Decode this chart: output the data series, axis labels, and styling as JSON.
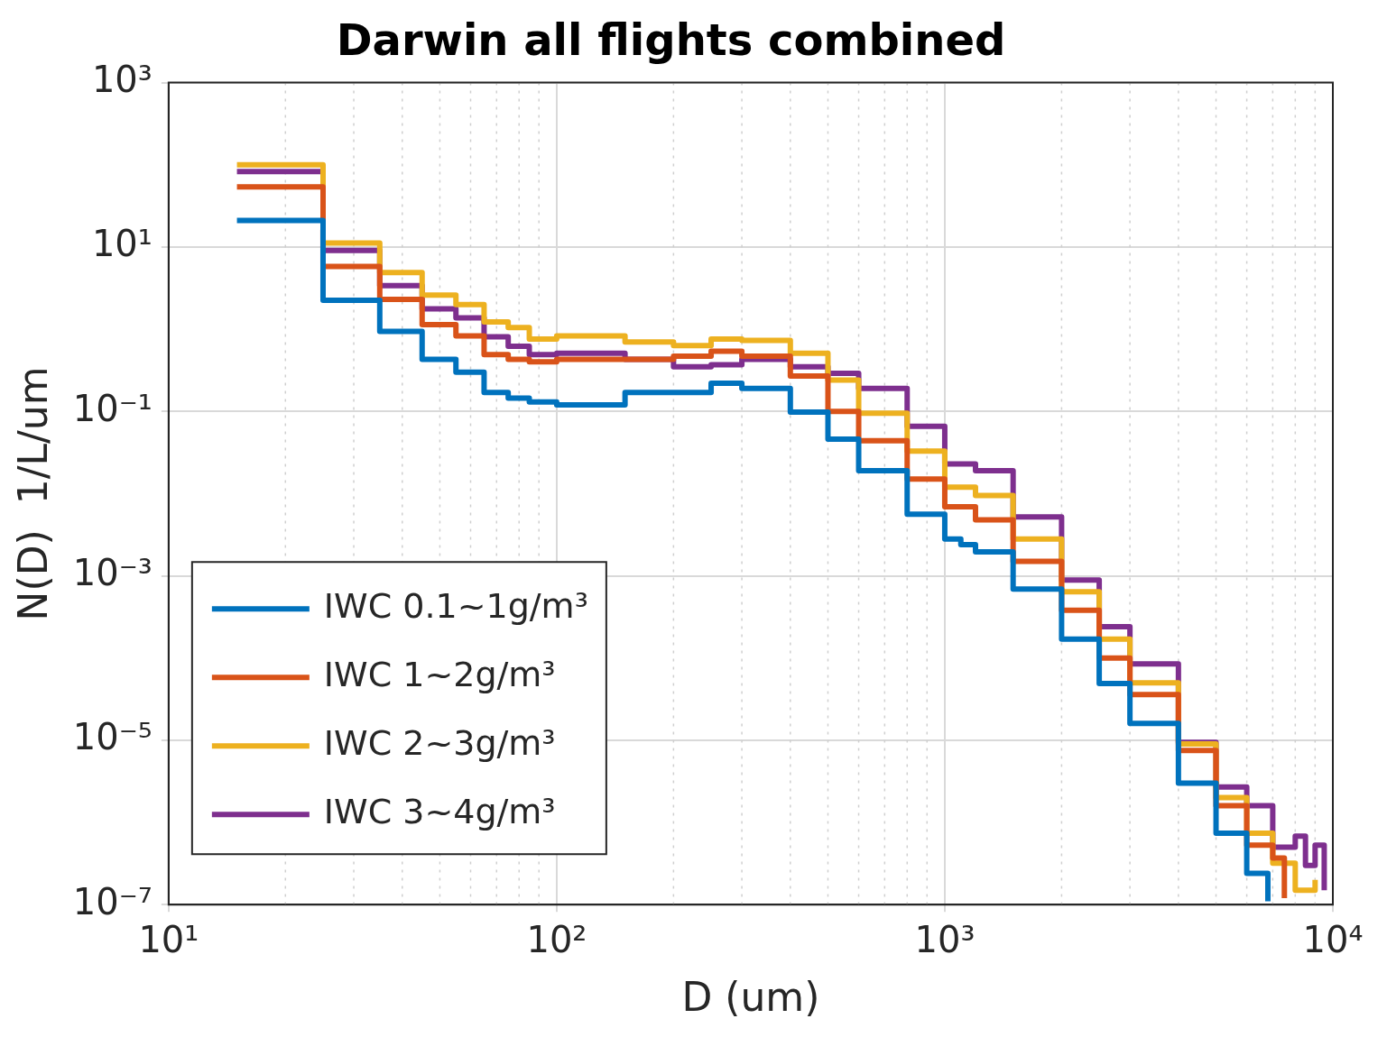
{
  "chart_data": {
    "type": "step",
    "title": "Darwin all flights combined",
    "xlabel": "D (um)",
    "ylabel": "N(D)  1/L/um",
    "log": "xy",
    "grid": true,
    "legend": "bottom left",
    "line_style": "solid",
    "marker": "none",
    "xlim": [
      10,
      10000
    ],
    "xticks": [
      {
        "value": 10,
        "label": "10¹"
      },
      {
        "value": 100,
        "label": "10²"
      },
      {
        "value": 1000,
        "label": "10³"
      },
      {
        "value": 10000,
        "label": "10⁴"
      }
    ],
    "ylim": [
      1e-07,
      1000
    ],
    "yticks": [
      {
        "value": 1e-07,
        "label": "10⁻⁷"
      },
      {
        "value": 1e-05,
        "label": "10⁻⁵"
      },
      {
        "value": 0.001,
        "label": "10⁻³"
      },
      {
        "value": 0.1,
        "label": "10⁻¹"
      },
      {
        "value": 10,
        "label": "10¹"
      },
      {
        "value": 1000,
        "label": "10³"
      }
    ],
    "series": [
      {
        "name": "IWC 0.1~1g/m³",
        "color": "#0072bd",
        "x": [
          15,
          25,
          35,
          45,
          55,
          65,
          75,
          85,
          100,
          150,
          250,
          300,
          400,
          500,
          600,
          800,
          1000,
          1100,
          1200,
          1500,
          2000,
          2500,
          3000,
          4000,
          5000,
          6000,
          6800
        ],
        "values": [
          21,
          2.25,
          0.94,
          0.43,
          0.3,
          0.17,
          0.145,
          0.13,
          0.12,
          0.17,
          0.22,
          0.19,
          0.098,
          0.046,
          0.019,
          0.0056,
          0.0028,
          0.0024,
          0.00196,
          0.00069,
          0.00017,
          4.9e-05,
          1.6e-05,
          3e-06,
          7.4e-07,
          2.4e-07,
          1.1e-07
        ]
      },
      {
        "name": "IWC 1~2g/m³",
        "color": "#d95319",
        "x": [
          15,
          25,
          35,
          45,
          55,
          65,
          75,
          85,
          100,
          200,
          250,
          300,
          400,
          500,
          600,
          800,
          1000,
          1100,
          1200,
          1500,
          2000,
          2500,
          3000,
          4000,
          5000,
          6000,
          7000,
          7500
        ],
        "values": [
          54,
          5.8,
          2.3,
          1.14,
          0.83,
          0.49,
          0.43,
          0.4,
          0.43,
          0.47,
          0.54,
          0.47,
          0.27,
          0.1,
          0.044,
          0.015,
          0.0069,
          0.0069,
          0.0048,
          0.0015,
          0.00038,
          0.0001,
          3.6e-05,
          7.5e-06,
          1.6e-06,
          5.3e-07,
          3.7e-07,
          1.2e-07
        ]
      },
      {
        "name": "IWC 2~3g/m³",
        "color": "#edb120",
        "x": [
          15,
          25,
          35,
          45,
          55,
          65,
          75,
          85,
          100,
          150,
          200,
          250,
          300,
          400,
          500,
          600,
          800,
          1000,
          1100,
          1200,
          1500,
          2000,
          2500,
          3000,
          4000,
          5000,
          6000,
          7000,
          8000,
          9000
        ],
        "values": [
          100,
          11.2,
          4.9,
          2.6,
          2,
          1.23,
          1.05,
          0.76,
          0.83,
          0.7,
          0.63,
          0.76,
          0.73,
          0.51,
          0.24,
          0.095,
          0.033,
          0.012,
          0.012,
          0.0095,
          0.0028,
          0.00064,
          0.00017,
          5e-05,
          9e-06,
          2e-06,
          7.4e-07,
          3.2e-07,
          1.5e-07,
          2e-07
        ]
      },
      {
        "name": "IWC 3~4g/m³",
        "color": "#7e2f8e",
        "x": [
          15,
          25,
          35,
          45,
          55,
          65,
          75,
          85,
          100,
          150,
          200,
          250,
          300,
          400,
          500,
          600,
          800,
          1000,
          1100,
          1200,
          1500,
          2000,
          2500,
          3000,
          4000,
          5000,
          6000,
          7000,
          8000,
          8500,
          9000,
          9500
        ],
        "values": [
          83,
          9.1,
          3.4,
          1.77,
          1.37,
          0.81,
          0.62,
          0.49,
          0.51,
          0.43,
          0.35,
          0.37,
          0.43,
          0.35,
          0.29,
          0.19,
          0.066,
          0.023,
          0.023,
          0.019,
          0.0052,
          0.00089,
          0.00024,
          8.5e-05,
          9.4e-06,
          2.7e-06,
          1.6e-06,
          5e-07,
          6.8e-07,
          3e-07,
          5.3e-07,
          1.5e-07
        ]
      }
    ]
  }
}
